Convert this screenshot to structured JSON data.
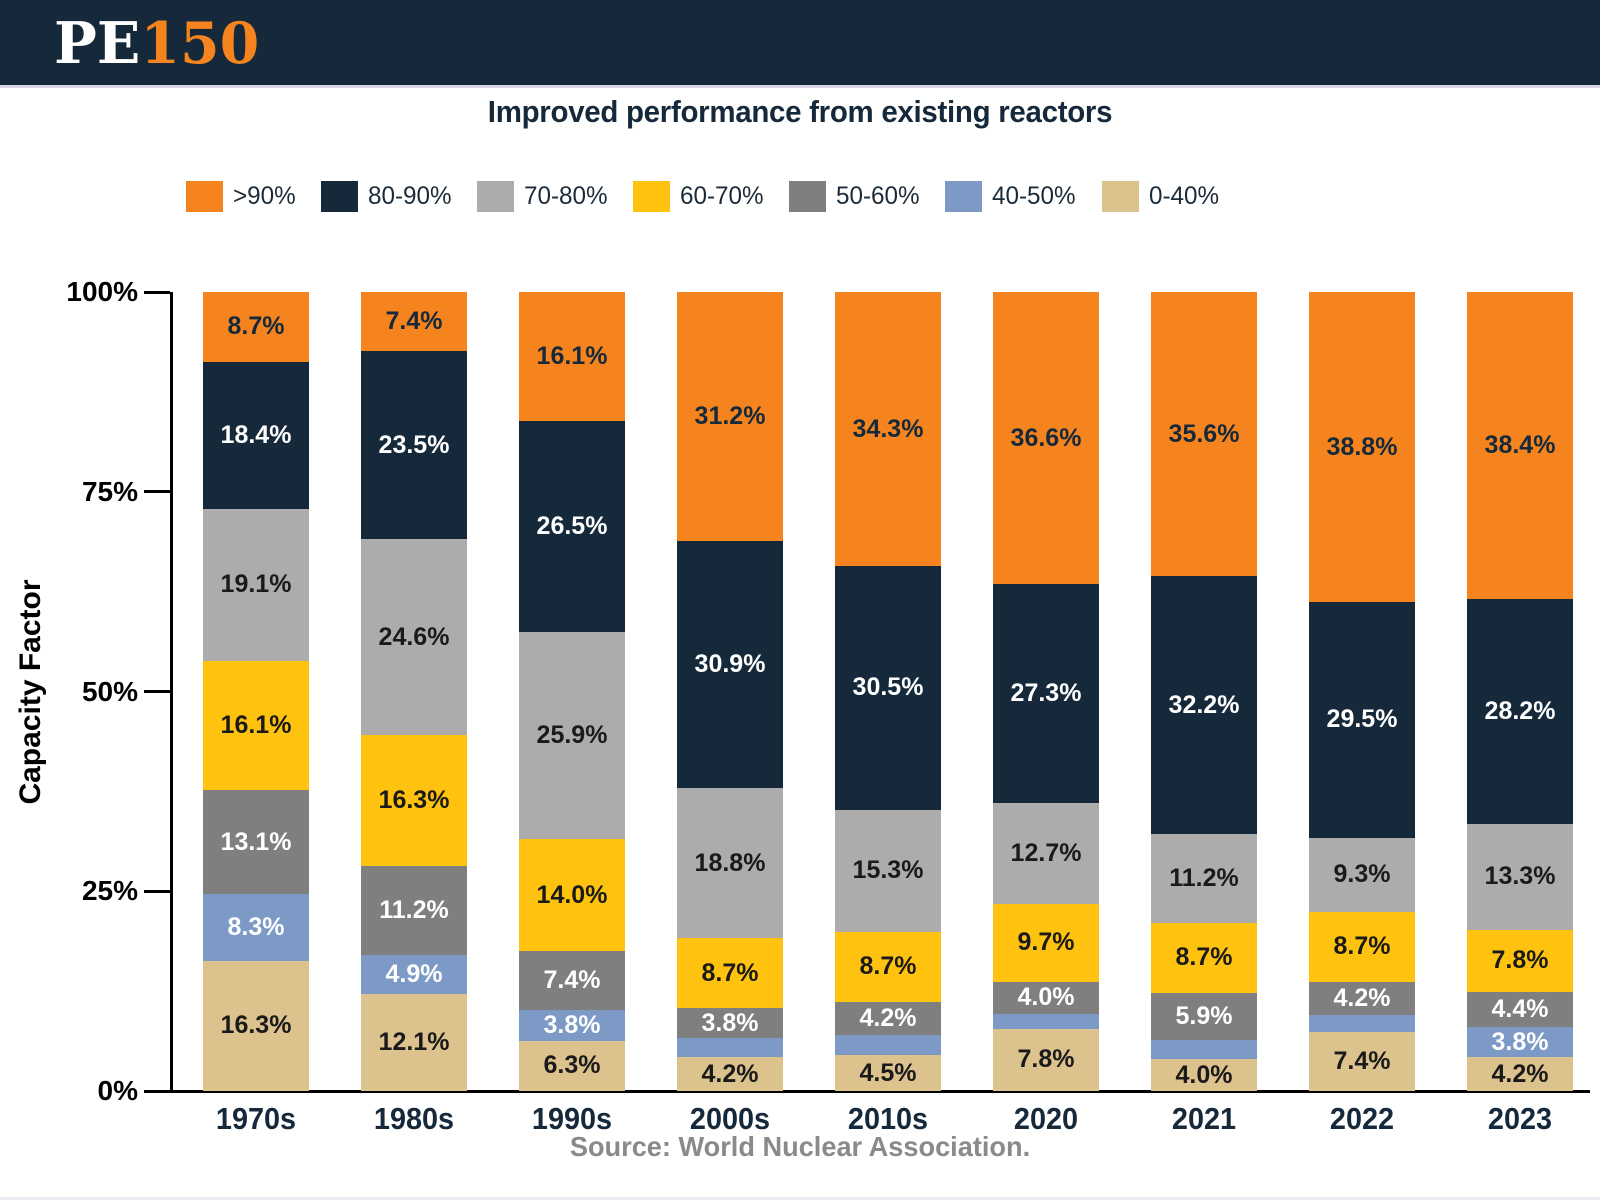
{
  "header": {
    "logo_pe": "PE",
    "logo_num": "150"
  },
  "chart_data": {
    "type": "bar",
    "variant": "stacked-100-percent",
    "title": "Improved performance from existing reactors",
    "ylabel": "Capacity Factor",
    "source": "Source: World Nuclear Association.",
    "categories": [
      "1970s",
      "1980s",
      "1990s",
      "2000s",
      "2010s",
      "2020",
      "2021",
      "2022",
      "2023"
    ],
    "ylim": [
      0,
      100
    ],
    "ytick_values": [
      0,
      25,
      50,
      75,
      100
    ],
    "ytick_labels": [
      "0%",
      "25%",
      "50%",
      "75%",
      "100%"
    ],
    "legend_order": [
      ">90%",
      "80-90%",
      "70-80%",
      "60-70%",
      "50-60%",
      "40-50%",
      "0-40%"
    ],
    "label_min": 3.0,
    "label_suffix": "%",
    "series": [
      {
        "name": "0-40%",
        "color": "#DCC28C",
        "label_color": "#1A1A1A",
        "values": [
          16.3,
          12.1,
          6.3,
          4.2,
          4.5,
          7.8,
          4.0,
          7.4,
          4.2
        ]
      },
      {
        "name": "40-50%",
        "color": "#7D9AC7",
        "label_color": "#FFFFFF",
        "values": [
          8.3,
          4.9,
          3.8,
          2.4,
          2.5,
          1.9,
          2.4,
          2.1,
          3.8
        ]
      },
      {
        "name": "50-60%",
        "color": "#7F7F7F",
        "label_color": "#FFFFFF",
        "values": [
          13.1,
          11.2,
          7.4,
          3.8,
          4.2,
          4.0,
          5.9,
          4.2,
          4.4
        ]
      },
      {
        "name": "60-70%",
        "color": "#FFC20E",
        "label_color": "#1A1A1A",
        "values": [
          16.1,
          16.3,
          14.0,
          8.7,
          8.7,
          9.7,
          8.7,
          8.7,
          7.8
        ]
      },
      {
        "name": "70-80%",
        "color": "#ACACAC",
        "label_color": "#1A1A1A",
        "values": [
          19.1,
          24.6,
          25.9,
          18.8,
          15.3,
          12.7,
          11.2,
          9.3,
          13.3
        ]
      },
      {
        "name": "80-90%",
        "color": "#16293B",
        "label_color": "#FFFFFF",
        "values": [
          18.4,
          23.5,
          26.5,
          30.9,
          30.5,
          27.3,
          32.2,
          29.5,
          28.2
        ]
      },
      {
        "name": ">90%",
        "color": "#F5841E",
        "label_color": "#16293B",
        "values": [
          8.7,
          7.4,
          16.1,
          31.2,
          34.3,
          36.6,
          35.6,
          38.8,
          38.4
        ]
      }
    ]
  }
}
